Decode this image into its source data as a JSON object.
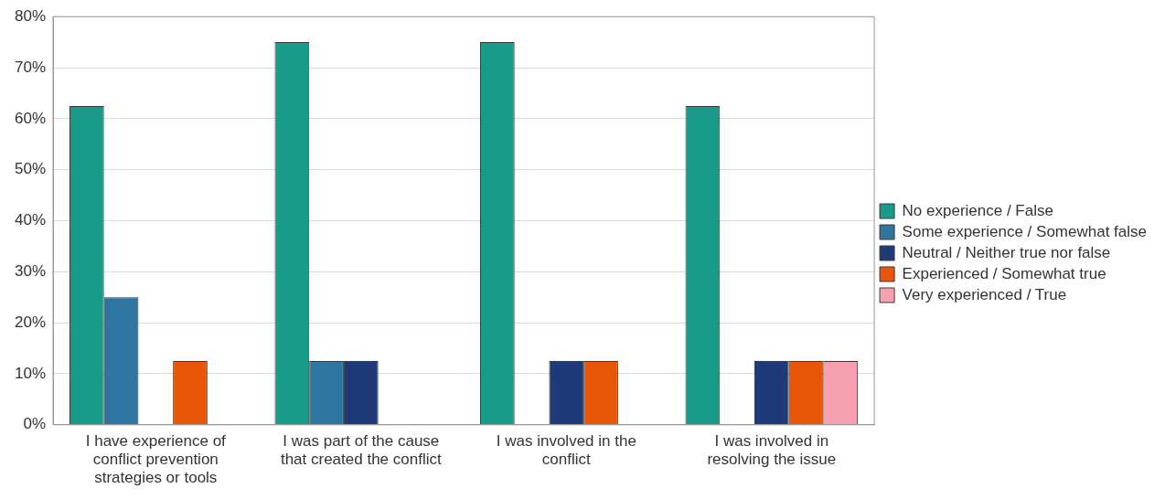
{
  "chart_data": {
    "type": "bar",
    "categories": [
      "I have experience of conflict prevention strategies or tools",
      "I was part of the cause that created the conflict",
      "I was involved in the conflict",
      "I was involved in resolving the issue"
    ],
    "series": [
      {
        "name": "No experience / False",
        "color": "#1a9a8a",
        "values": [
          62.5,
          75,
          75,
          62.5
        ]
      },
      {
        "name": "Some experience / Somewhat false",
        "color": "#2e75a0",
        "values": [
          25,
          12.5,
          0,
          0
        ]
      },
      {
        "name": "Neutral / Neither true nor false",
        "color": "#1f3a78",
        "values": [
          0,
          12.5,
          12.5,
          12.5
        ]
      },
      {
        "name": "Experienced / Somewhat true",
        "color": "#e8560a",
        "values": [
          12.5,
          0,
          12.5,
          12.5
        ]
      },
      {
        "name": "Very experienced / True",
        "color": "#f7a0b0",
        "values": [
          0,
          0,
          0,
          12.5
        ]
      }
    ],
    "ylim": [
      0,
      80
    ],
    "yticks": [
      {
        "value": 0,
        "label": "0%"
      },
      {
        "value": 10,
        "label": "10%"
      },
      {
        "value": 20,
        "label": "20%"
      },
      {
        "value": 30,
        "label": "30%"
      },
      {
        "value": 40,
        "label": "40%"
      },
      {
        "value": 50,
        "label": "50%"
      },
      {
        "value": 60,
        "label": "60%"
      },
      {
        "value": 70,
        "label": "70%"
      },
      {
        "value": 80,
        "label": "80%"
      }
    ],
    "grid": "y",
    "legend": "right"
  }
}
